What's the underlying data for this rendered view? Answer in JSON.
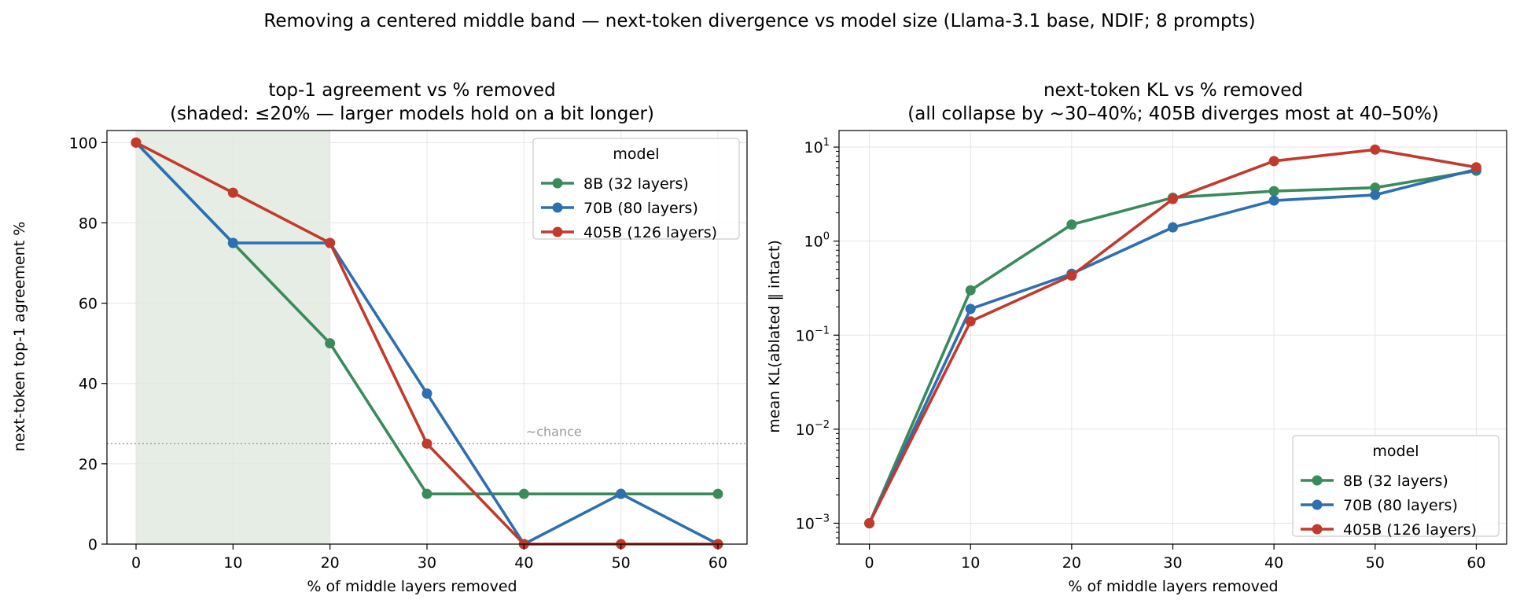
{
  "figure": {
    "title": "Removing a centered middle band — next-token divergence vs model size (Llama-3.1 base, NDIF; 8 prompts)"
  },
  "colors": {
    "8B": "#3a8a5c",
    "70B": "#2e6fb0",
    "405B": "#c23a2e",
    "shade": "#e6ede4",
    "chance_line": "#999999"
  },
  "chart_data": [
    {
      "type": "line",
      "title": "top-1 agreement vs % removed",
      "subtitle": "(shaded: ≤20% — larger models hold on a bit longer)",
      "xlabel": "% of middle layers removed",
      "ylabel": "next-token top-1 agreement %",
      "x": [
        0,
        10,
        20,
        30,
        40,
        50,
        60
      ],
      "xlim": [
        -3,
        63
      ],
      "ylim": [
        0,
        103
      ],
      "xticks": [
        "0",
        "10",
        "20",
        "30",
        "40",
        "50",
        "60"
      ],
      "yticks": [
        "0",
        "20",
        "40",
        "60",
        "80",
        "100"
      ],
      "yscale": "linear",
      "grid": true,
      "shaded_region": [
        0,
        20
      ],
      "hline": {
        "y": 25,
        "label": "~chance"
      },
      "legend": {
        "title": "model",
        "placement": "upper right"
      },
      "series": [
        {
          "name": "8B (32 layers)",
          "color_key": "8B",
          "values": [
            100,
            75,
            50,
            12.5,
            12.5,
            12.5,
            12.5
          ]
        },
        {
          "name": "70B (80 layers)",
          "color_key": "70B",
          "values": [
            100,
            75,
            75,
            37.5,
            0,
            12.5,
            0
          ]
        },
        {
          "name": "405B (126 layers)",
          "color_key": "405B",
          "values": [
            100,
            87.5,
            75,
            25,
            0,
            0,
            0
          ]
        }
      ]
    },
    {
      "type": "line",
      "title": "next-token KL vs % removed",
      "subtitle": "(all collapse by ~30–40%; 405B diverges most at 40–50%)",
      "xlabel": "% of middle layers removed",
      "ylabel": "mean KL(ablated ‖ intact)",
      "x": [
        0,
        10,
        20,
        30,
        40,
        50,
        60
      ],
      "xlim": [
        -3,
        63
      ],
      "ylim": [
        0.0006,
        15
      ],
      "xticks": [
        "0",
        "10",
        "20",
        "30",
        "40",
        "50",
        "60"
      ],
      "yticks": [
        {
          "value": 0.001,
          "base": "10",
          "exp": "−3"
        },
        {
          "value": 0.01,
          "base": "10",
          "exp": "−2"
        },
        {
          "value": 0.1,
          "base": "10",
          "exp": "−1"
        },
        {
          "value": 1,
          "base": "10",
          "exp": "0"
        },
        {
          "value": 10,
          "base": "10",
          "exp": "1"
        }
      ],
      "yscale": "log",
      "grid": true,
      "legend": {
        "title": "model",
        "placement": "lower right"
      },
      "series": [
        {
          "name": "8B (32 layers)",
          "color_key": "8B",
          "values": [
            0.001,
            0.3,
            1.5,
            2.9,
            3.4,
            3.7,
            5.6
          ]
        },
        {
          "name": "70B (80 layers)",
          "color_key": "70B",
          "values": [
            0.001,
            0.19,
            0.45,
            1.4,
            2.7,
            3.1,
            5.8
          ]
        },
        {
          "name": "405B (126 layers)",
          "color_key": "405B",
          "values": [
            0.001,
            0.14,
            0.43,
            2.8,
            7.1,
            9.4,
            6.1
          ]
        }
      ]
    }
  ]
}
